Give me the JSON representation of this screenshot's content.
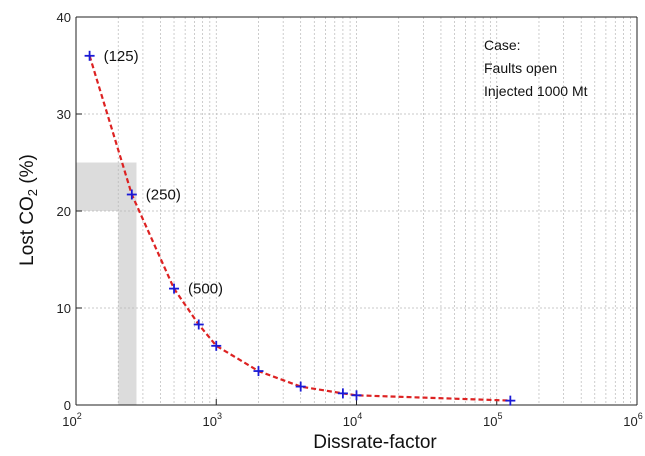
{
  "chart_data": {
    "type": "line",
    "xscale": "log",
    "xlim": [
      100,
      1000000
    ],
    "ylim": [
      0,
      40
    ],
    "xlabel": "Dissrate-factor",
    "ylabel_main": "Lost CO",
    "ylabel_sub": "2",
    "ylabel_suffix": " (%)",
    "x_ticks": [
      {
        "base": "10",
        "exp": "2"
      },
      {
        "base": "10",
        "exp": "3"
      },
      {
        "base": "10",
        "exp": "4"
      },
      {
        "base": "10",
        "exp": "5"
      },
      {
        "base": "10",
        "exp": "6"
      }
    ],
    "y_ticks": [
      "0",
      "10",
      "20",
      "30",
      "40"
    ],
    "grid": true,
    "series": [
      {
        "line_color": "#dd2222",
        "marker_color": "#1a1ad6",
        "x": [
          125,
          250,
          500,
          750,
          1000,
          2000,
          4000,
          8000,
          10000,
          125000
        ],
        "y": [
          36.0,
          21.7,
          12.0,
          8.3,
          6.1,
          3.5,
          1.9,
          1.2,
          1.0,
          0.45
        ]
      }
    ],
    "point_labels": [
      {
        "text": "(125)",
        "x": 125,
        "y": 36.0
      },
      {
        "text": "(250)",
        "x": 250,
        "y": 21.7
      },
      {
        "text": "(500)",
        "x": 500,
        "y": 12.0
      }
    ],
    "legend_lines": [
      "Case:",
      "Faults open",
      "Injected 1000 Mt"
    ],
    "legend_position": "top-right",
    "highlight_color": "#dcdcdc",
    "highlight_y_band": [
      20,
      25
    ],
    "highlight_x_band": [
      200,
      270
    ]
  }
}
